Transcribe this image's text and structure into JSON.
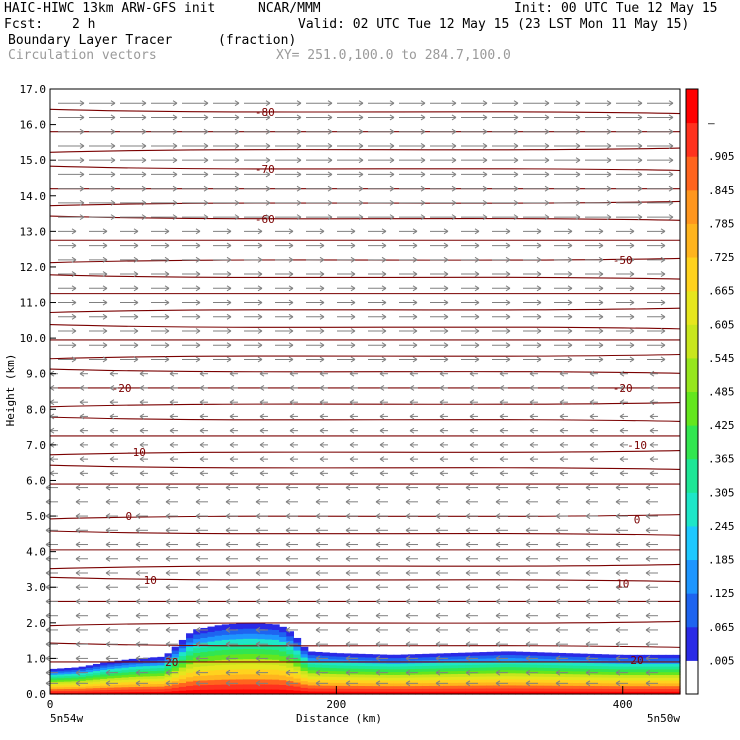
{
  "header": {
    "model": "HAIC-HIWC 13km ARW-GFS init",
    "org": "NCAR/MMM",
    "init": "Init: 00 UTC Tue 12 May 15",
    "fcst_label": "Fcst:",
    "fcst_value": "2 h",
    "valid": "Valid: 02 UTC Tue 12 May 15 (23 LST Mon 11 May 15)",
    "field1_name": "Boundary Layer Tracer",
    "field1_units": "(fraction)",
    "field2_name": "Circulation vectors",
    "xy_range": "XY= 251.0,100.0 to 284.7,100.0"
  },
  "footer": {
    "left_point": "5n54w",
    "right_point": "5n50w"
  },
  "colors": {
    "contour": "#7a0000",
    "vector": "#808080"
  },
  "chart_data": {
    "type": "cross-section",
    "xlabel": "Distance (km)",
    "ylabel": "Height (km)",
    "xlim": [
      0,
      440
    ],
    "ylim": [
      0,
      17
    ],
    "xticks": [
      "0",
      "200",
      "400"
    ],
    "yticks": [
      "0.0",
      "1.0",
      "2.0",
      "3.0",
      "4.0",
      "5.0",
      "6.0",
      "7.0",
      "8.0",
      "9.0",
      "10.0",
      "11.0",
      "12.0",
      "13.0",
      "14.0",
      "15.0",
      "16.0",
      "17.0"
    ],
    "colorbar": {
      "labels": [
        ".005",
        ".065",
        ".125",
        ".185",
        ".245",
        ".305",
        ".365",
        ".425",
        ".485",
        ".545",
        ".605",
        ".665",
        ".725",
        ".785",
        ".845",
        ".905",
        "–"
      ],
      "colors": [
        "#ffffff",
        "#2a2ae6",
        "#1e64f0",
        "#1e96ff",
        "#1ec8ff",
        "#1ee6c8",
        "#1ee696",
        "#32e650",
        "#64e61e",
        "#96e61e",
        "#c8e61e",
        "#e6e61e",
        "#ffd21e",
        "#ffb41e",
        "#ff961e",
        "#ff641e",
        "#ff321e",
        "#ff0000"
      ]
    },
    "tracer_profile": {
      "x_km": [
        0,
        20,
        40,
        60,
        80,
        100,
        120,
        140,
        160,
        170,
        180,
        200,
        240,
        280,
        320,
        360,
        400,
        440
      ],
      "top_height_km": [
        0.7,
        0.75,
        0.9,
        1.0,
        1.05,
        1.8,
        1.95,
        2.0,
        1.95,
        1.7,
        1.2,
        1.15,
        1.1,
        1.15,
        1.2,
        1.15,
        1.1,
        1.1
      ]
    },
    "contour_labels": [
      {
        "text": "-80",
        "x_km": 150,
        "y_km": 16.35
      },
      {
        "text": "-70",
        "x_km": 150,
        "y_km": 14.75
      },
      {
        "text": "-60",
        "x_km": 150,
        "y_km": 13.35
      },
      {
        "text": "-50",
        "x_km": 400,
        "y_km": 12.2
      },
      {
        "text": "-20",
        "x_km": 50,
        "y_km": 8.6
      },
      {
        "text": "-20",
        "x_km": 400,
        "y_km": 8.6
      },
      {
        "text": "-10",
        "x_km": 60,
        "y_km": 6.8
      },
      {
        "text": "-10",
        "x_km": 410,
        "y_km": 7.0
      },
      {
        "text": "0",
        "x_km": 55,
        "y_km": 5.0
      },
      {
        "text": "0",
        "x_km": 410,
        "y_km": 4.9
      },
      {
        "text": "10",
        "x_km": 70,
        "y_km": 3.2
      },
      {
        "text": "10",
        "x_km": 400,
        "y_km": 3.1
      },
      {
        "text": "20",
        "x_km": 85,
        "y_km": 0.9
      },
      {
        "text": "20",
        "x_km": 410,
        "y_km": 0.95
      }
    ],
    "contour_heights_km": [
      16.35,
      15.8,
      15.3,
      14.75,
      14.2,
      13.8,
      13.35,
      12.75,
      12.2,
      11.7,
      11.25,
      10.8,
      10.3,
      9.95,
      9.5,
      9.05,
      8.6,
      8.15,
      7.7,
      7.25,
      6.8,
      6.35,
      5.9,
      5.0,
      4.5,
      4.05,
      3.6,
      3.2,
      2.6,
      2.0,
      1.35,
      0.9
    ],
    "vector_rows_km": [
      16.6,
      16.2,
      15.8,
      15.4,
      15.0,
      14.6,
      14.2,
      13.8,
      13.4,
      13.0,
      12.6,
      12.2,
      11.8,
      11.4,
      11.0,
      10.6,
      10.2,
      9.8,
      9.4,
      9.0,
      8.6,
      8.2,
      7.8,
      7.4,
      7.0,
      6.6,
      6.2,
      5.8,
      5.4,
      5.0,
      4.6,
      4.2,
      3.8,
      3.4,
      3.0,
      2.6,
      2.2,
      1.8,
      1.4,
      1.0,
      0.6,
      0.3
    ]
  }
}
